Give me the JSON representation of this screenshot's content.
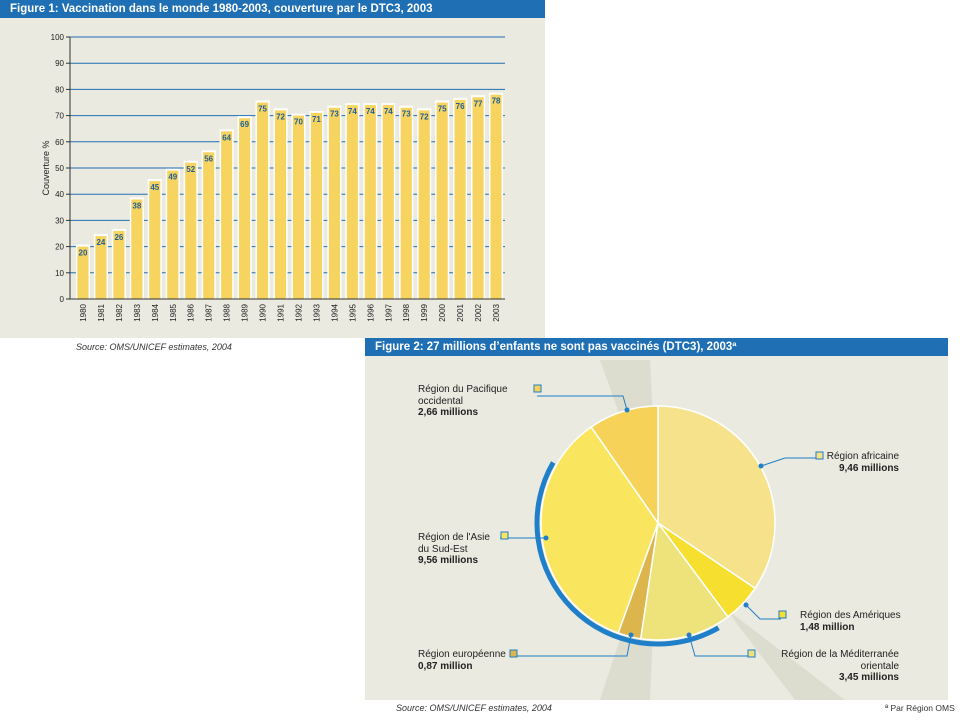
{
  "figure1": {
    "label": "Figure 1:",
    "title": "Vaccination dans le monde 1980-2003, couverture par le DTC3, 2003",
    "source": "Source: OMS/UNICEF estimates, 2004"
  },
  "figure2": {
    "label": "Figure 2:",
    "title": "27 millions d’enfants ne sont pas vaccinés (DTC3), 2003ª",
    "source": "Source: OMS/UNICEF estimates, 2004",
    "note": "ª Par Région OMS"
  },
  "chart_data": [
    {
      "type": "bar",
      "title": "Vaccination dans le monde 1980-2003, couverture par le DTC3, 2003",
      "ylabel": "Couverture %",
      "xlabel": "",
      "ylim": [
        0,
        100
      ],
      "yticks": [
        0,
        10,
        20,
        30,
        40,
        50,
        60,
        70,
        80,
        90,
        100
      ],
      "grid": true,
      "categories": [
        "1980",
        "1981",
        "1982",
        "1983",
        "1984",
        "1985",
        "1986",
        "1987",
        "1988",
        "1989",
        "1990",
        "1991",
        "1992",
        "1993",
        "1994",
        "1995",
        "1996",
        "1997",
        "1998",
        "1999",
        "2000",
        "2001",
        "2002",
        "2003"
      ],
      "values": [
        20,
        24,
        26,
        38,
        45,
        49,
        52,
        56,
        64,
        69,
        75,
        72,
        70,
        71,
        73,
        74,
        74,
        74,
        73,
        72,
        75,
        76,
        77,
        78
      ],
      "colors": {
        "bar": "#f7d460",
        "bar_edge": "#f0c040",
        "label": "#1f5f9a",
        "grid": "#1f6fb4"
      }
    },
    {
      "type": "pie",
      "title": "27 millions d’enfants ne sont pas vaccinés (DTC3), 2003ª",
      "slices": [
        {
          "name": "Région africaine",
          "value": 9.46,
          "value_label": "9,46 millions",
          "color": "#f5e28a"
        },
        {
          "name": "Région des Amériques",
          "value": 1.48,
          "value_label": "1,48 million",
          "color": "#f7df2f"
        },
        {
          "name": "Région de la Méditerranée orientale",
          "value": 3.45,
          "value_label": "3,45 millions",
          "color": "#eee27a"
        },
        {
          "name": "Région européenne",
          "value": 0.87,
          "value_label": "0,87 million",
          "color": "#dcb64c"
        },
        {
          "name": "Région de l'Asie du Sud-Est",
          "value": 9.56,
          "value_label": "9,56 millions",
          "color": "#f9e55e"
        },
        {
          "name": "Région du Pacifique occidental",
          "value": 2.66,
          "value_label": "2,66 millions",
          "color": "#f6d358"
        }
      ],
      "colors": {
        "leader": "#1f7fc8",
        "rim": "#1f7fc8"
      }
    }
  ],
  "pie_labels": {
    "pacifique": {
      "l1": "Région du Pacifique",
      "l2": "occidental",
      "val": "2,66 millions"
    },
    "africaine": {
      "l1": "Région africaine",
      "val": "9,46 millions"
    },
    "asie": {
      "l1": "Région de l'Asie",
      "l2": "du Sud-Est",
      "val": "9,56 millions"
    },
    "ameriques": {
      "l1": "Région des Amériques",
      "val": "1,48 million"
    },
    "mediterranee": {
      "l1": "Région de la Méditerranée",
      "l2": "orientale",
      "val": "3,45 millions"
    },
    "europe": {
      "l1": "Région européenne",
      "val": "0,87 million"
    }
  }
}
